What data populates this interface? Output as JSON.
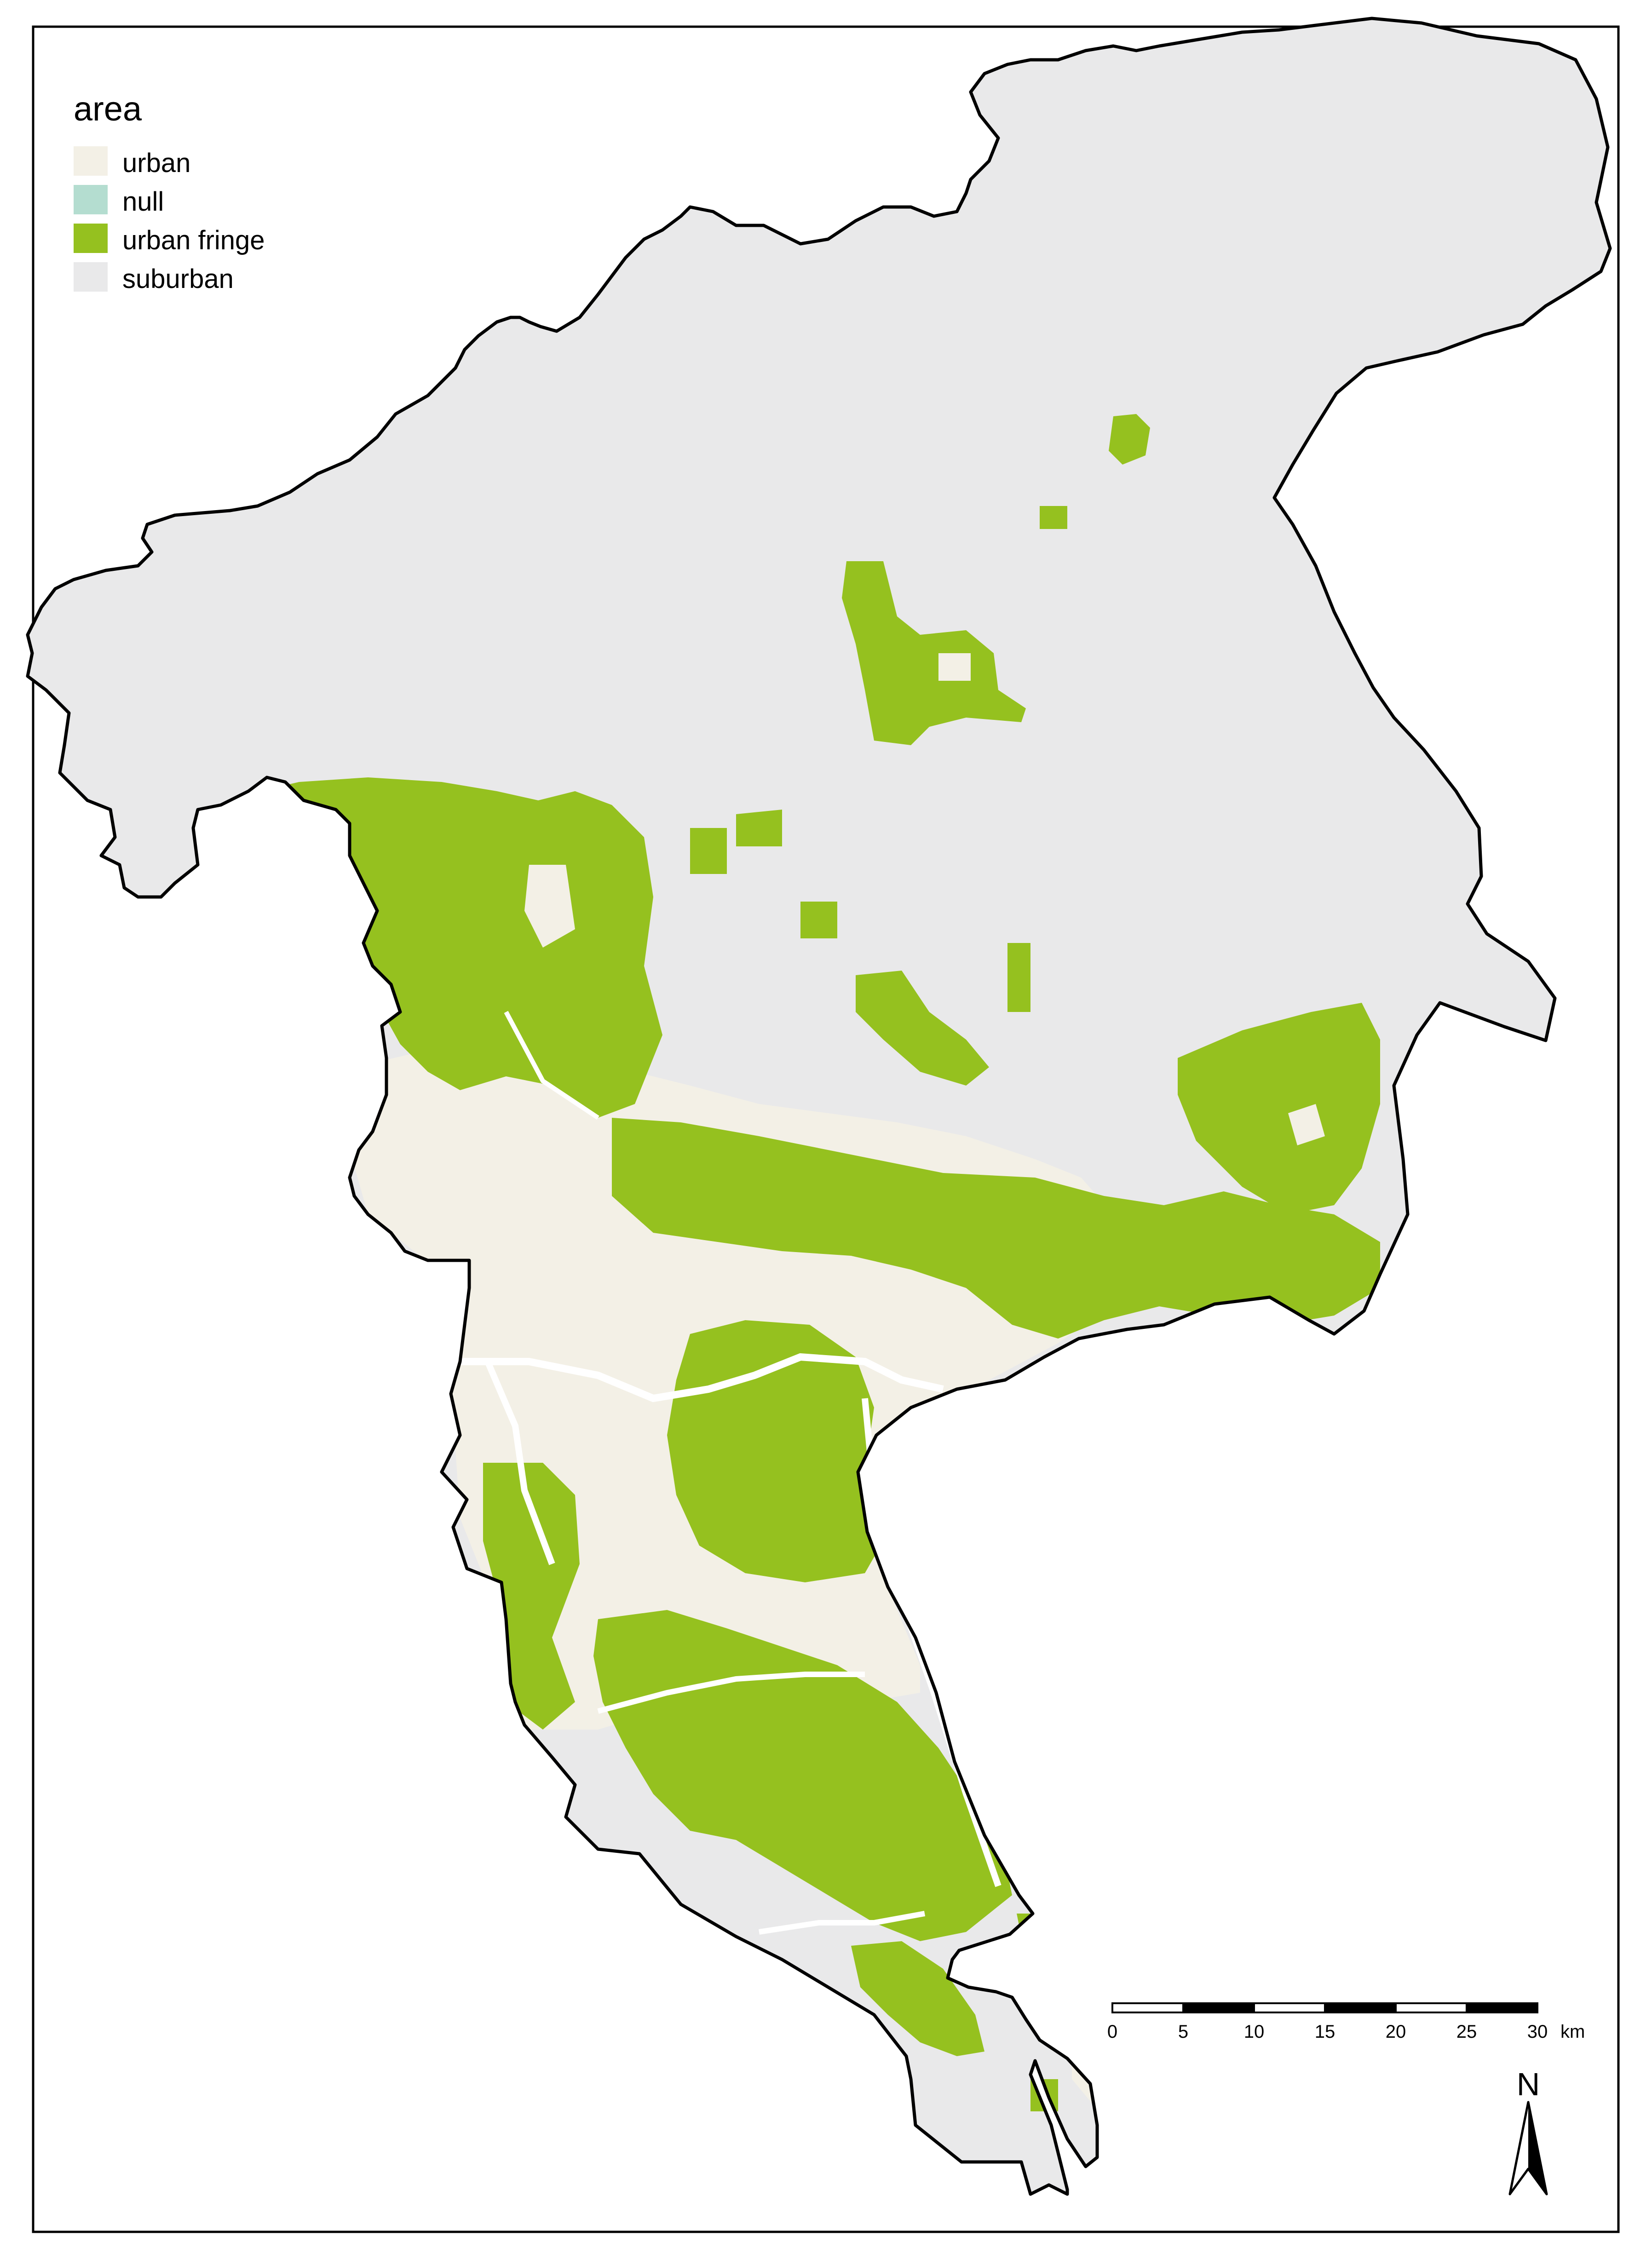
{
  "legend": {
    "title": "area",
    "items": [
      {
        "key": "urban",
        "label": "urban",
        "color": "#f3f0e6"
      },
      {
        "key": "null",
        "label": "null",
        "color": "#b4ddd0"
      },
      {
        "key": "urban_fringe",
        "label": "urban fringe",
        "color": "#95c11f"
      },
      {
        "key": "suburban",
        "label": "suburban",
        "color": "#e9e9ea"
      }
    ]
  },
  "scale_bar": {
    "ticks": [
      "0",
      "5",
      "10",
      "15",
      "20",
      "25",
      "30"
    ],
    "unit": "km"
  },
  "north_arrow": {
    "label": "N"
  },
  "colors": {
    "outline": "#000000",
    "river": "#ffffff",
    "background": "#ffffff"
  }
}
